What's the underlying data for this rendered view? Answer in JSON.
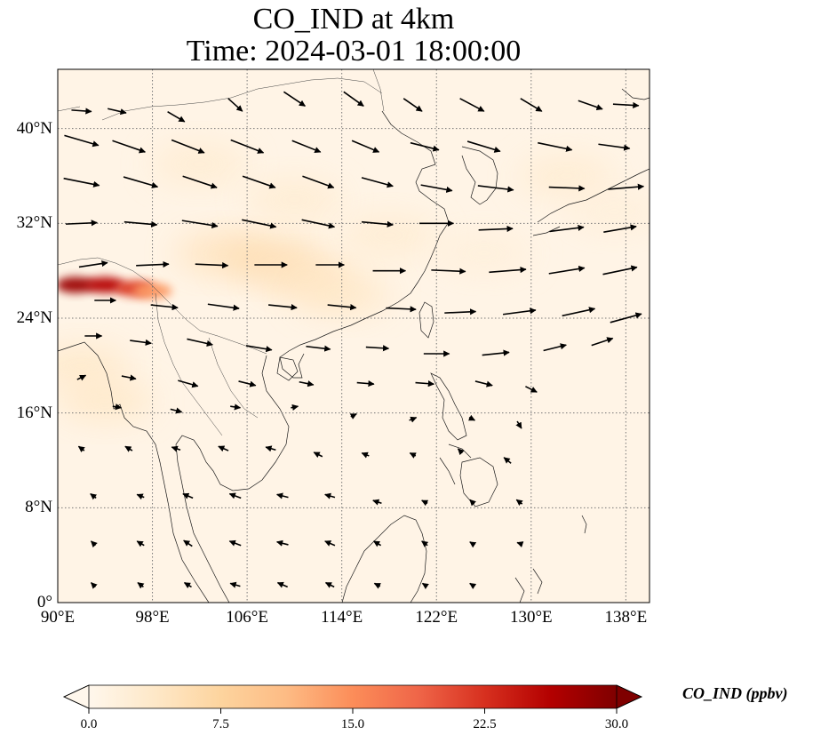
{
  "title_line1": "CO_IND at 4km",
  "title_line2": "Time: 2024-03-01 18:00:00",
  "chart_data": {
    "type": "heatmap",
    "projection": "PlateCarree",
    "lon_range": [
      90,
      140
    ],
    "lat_range": [
      0,
      45
    ],
    "x_ticks": [
      {
        "value": 90,
        "label": "90°E"
      },
      {
        "value": 98,
        "label": "98°E"
      },
      {
        "value": 106,
        "label": "106°E"
      },
      {
        "value": 114,
        "label": "114°E"
      },
      {
        "value": 122,
        "label": "122°E"
      },
      {
        "value": 130,
        "label": "130°E"
      },
      {
        "value": 138,
        "label": "138°E"
      }
    ],
    "y_ticks": [
      {
        "value": 0,
        "label": "0°"
      },
      {
        "value": 8,
        "label": "8°N"
      },
      {
        "value": 16,
        "label": "16°N"
      },
      {
        "value": 24,
        "label": "24°N"
      },
      {
        "value": 32,
        "label": "32°N"
      },
      {
        "value": 40,
        "label": "40°N"
      }
    ],
    "grid": true,
    "colormap": "OrRd",
    "color_range": [
      0,
      30
    ],
    "colorbar": {
      "orientation": "horizontal",
      "extend": "both",
      "ticks": [
        {
          "value": 0,
          "label": "0.0"
        },
        {
          "value": 7.5,
          "label": "7.5"
        },
        {
          "value": 15,
          "label": "15.0"
        },
        {
          "value": 22.5,
          "label": "22.5"
        },
        {
          "value": 30,
          "label": "30.0"
        }
      ],
      "label": "CO_IND (ppbv)"
    },
    "concentration_features": [
      {
        "lon": 91.5,
        "lat": 26.8,
        "value": 28
      },
      {
        "lon": 94.0,
        "lat": 26.8,
        "value": 26
      },
      {
        "lon": 96.5,
        "lat": 26.5,
        "value": 22
      },
      {
        "lon": 98.0,
        "lat": 26.3,
        "value": 14
      },
      {
        "lon": 92.0,
        "lat": 20.0,
        "value": 4
      },
      {
        "lon": 94.0,
        "lat": 17.0,
        "value": 4
      },
      {
        "lon": 104.0,
        "lat": 29.5,
        "value": 5
      },
      {
        "lon": 108.0,
        "lat": 29.0,
        "value": 6
      },
      {
        "lon": 111.0,
        "lat": 27.5,
        "value": 5
      },
      {
        "lon": 114.0,
        "lat": 26.0,
        "value": 4
      },
      {
        "lon": 102.0,
        "lat": 37.0,
        "value": 3
      },
      {
        "lon": 110.0,
        "lat": 34.0,
        "value": 3
      },
      {
        "lon": 118.0,
        "lat": 31.0,
        "value": 3
      },
      {
        "lon": 126.0,
        "lat": 29.5,
        "value": 2
      },
      {
        "lon": 133.0,
        "lat": 36.0,
        "value": 3
      },
      {
        "lon": 137.0,
        "lat": 33.0,
        "value": 2
      }
    ],
    "wind_vectors": [
      [
        92,
        41.5,
        1.4,
        -0.1
      ],
      [
        95,
        41.5,
        1.3,
        -0.3
      ],
      [
        100,
        41,
        1.2,
        -0.7
      ],
      [
        105,
        42,
        1.0,
        -0.9
      ],
      [
        110,
        42.5,
        1.5,
        -1.0
      ],
      [
        115,
        42.5,
        1.4,
        -1.0
      ],
      [
        120,
        42,
        1.3,
        -0.9
      ],
      [
        125,
        42,
        1.7,
        -0.9
      ],
      [
        130,
        42,
        1.5,
        -0.9
      ],
      [
        135,
        42,
        1.7,
        -0.6
      ],
      [
        138,
        42,
        1.8,
        -0.1
      ],
      [
        92,
        39,
        2.4,
        -0.7
      ],
      [
        96,
        38.5,
        2.3,
        -0.8
      ],
      [
        101,
        38.5,
        2.3,
        -0.9
      ],
      [
        106,
        38.5,
        2.3,
        -0.9
      ],
      [
        111,
        38.5,
        2.0,
        -0.8
      ],
      [
        116,
        38.5,
        1.9,
        -0.8
      ],
      [
        121,
        38.5,
        2.0,
        -0.5
      ],
      [
        126,
        38.5,
        2.3,
        -0.7
      ],
      [
        132,
        38.5,
        2.4,
        -0.5
      ],
      [
        137,
        38.5,
        2.2,
        -0.3
      ],
      [
        92,
        35.5,
        2.5,
        -0.5
      ],
      [
        97,
        35.5,
        2.4,
        -0.7
      ],
      [
        102,
        35.5,
        2.4,
        -0.8
      ],
      [
        107,
        35.5,
        2.3,
        -0.8
      ],
      [
        112,
        35.5,
        2.2,
        -0.8
      ],
      [
        117,
        35.5,
        2.2,
        -0.6
      ],
      [
        122,
        35,
        2.2,
        -0.4
      ],
      [
        127,
        35,
        2.5,
        -0.3
      ],
      [
        133,
        35,
        2.5,
        -0.1
      ],
      [
        138,
        35,
        2.5,
        0.2
      ],
      [
        92,
        32,
        2.2,
        0.1
      ],
      [
        97,
        32,
        2.3,
        -0.2
      ],
      [
        102,
        32,
        2.5,
        -0.4
      ],
      [
        107,
        32,
        2.4,
        -0.5
      ],
      [
        112,
        32,
        2.3,
        -0.5
      ],
      [
        117,
        32,
        2.2,
        -0.2
      ],
      [
        122,
        32,
        2.4,
        0.0
      ],
      [
        127,
        31.5,
        2.4,
        0.1
      ],
      [
        133,
        31.5,
        2.4,
        0.3
      ],
      [
        137.5,
        31.5,
        2.3,
        0.4
      ],
      [
        93,
        28.5,
        2.0,
        0.3
      ],
      [
        98,
        28.5,
        2.3,
        0.1
      ],
      [
        103,
        28.5,
        2.3,
        -0.1
      ],
      [
        108,
        28.5,
        2.3,
        0.0
      ],
      [
        113,
        28.5,
        2.0,
        0.0
      ],
      [
        118,
        28,
        2.3,
        0.0
      ],
      [
        123,
        28,
        2.4,
        -0.1
      ],
      [
        128,
        28,
        2.6,
        0.2
      ],
      [
        133,
        28,
        2.5,
        0.4
      ],
      [
        137.5,
        28,
        2.4,
        0.5
      ],
      [
        94,
        25.5,
        1.5,
        0.0
      ],
      [
        99,
        25,
        1.9,
        -0.2
      ],
      [
        104,
        25,
        2.2,
        -0.3
      ],
      [
        109,
        25,
        2.0,
        -0.2
      ],
      [
        114,
        25,
        2.0,
        -0.2
      ],
      [
        119,
        24.8,
        2.1,
        -0.1
      ],
      [
        124,
        24.5,
        2.2,
        0.1
      ],
      [
        129,
        24.5,
        2.3,
        0.3
      ],
      [
        134,
        24.5,
        2.3,
        0.5
      ],
      [
        138,
        24,
        2.2,
        0.6
      ],
      [
        93,
        22.5,
        1.2,
        0.0
      ],
      [
        97,
        22,
        1.5,
        -0.2
      ],
      [
        102,
        22,
        1.8,
        -0.4
      ],
      [
        107,
        21.5,
        1.8,
        -0.3
      ],
      [
        112,
        21.5,
        1.7,
        -0.2
      ],
      [
        117,
        21.5,
        1.6,
        -0.1
      ],
      [
        122,
        21,
        1.8,
        0.0
      ],
      [
        127,
        21,
        1.9,
        0.2
      ],
      [
        132,
        21.5,
        1.6,
        0.4
      ],
      [
        136,
        22,
        1.5,
        0.5
      ],
      [
        92,
        19,
        0.6,
        0.3
      ],
      [
        96,
        19,
        1.0,
        -0.2
      ],
      [
        101,
        18.5,
        1.4,
        -0.4
      ],
      [
        106,
        18.5,
        1.2,
        -0.3
      ],
      [
        111,
        18.5,
        1.0,
        -0.2
      ],
      [
        116,
        18.5,
        1.2,
        -0.1
      ],
      [
        121,
        18.5,
        1.3,
        -0.1
      ],
      [
        126,
        18.5,
        1.2,
        -0.3
      ],
      [
        130,
        18,
        0.8,
        -0.4
      ],
      [
        95,
        16.5,
        0.6,
        -0.1
      ],
      [
        100,
        16.2,
        0.8,
        -0.2
      ],
      [
        105,
        16.5,
        0.7,
        -0.1
      ],
      [
        110,
        16.5,
        0.5,
        0.1
      ],
      [
        115,
        15.8,
        0.4,
        0.2
      ],
      [
        120,
        15.5,
        0.5,
        0.2
      ],
      [
        125,
        15.5,
        0.4,
        -0.2
      ],
      [
        129,
        15,
        0.3,
        -0.5
      ],
      [
        92,
        13,
        -0.4,
        0.3
      ],
      [
        96,
        13,
        -0.5,
        0.3
      ],
      [
        100,
        13,
        -0.6,
        0.2
      ],
      [
        104,
        13,
        -0.7,
        0.3
      ],
      [
        108,
        13,
        -0.7,
        0.2
      ],
      [
        112,
        12.5,
        -0.6,
        0.3
      ],
      [
        116,
        12.5,
        -0.5,
        0.2
      ],
      [
        120,
        12.5,
        -0.4,
        0.2
      ],
      [
        124,
        12.8,
        -0.3,
        0.3
      ],
      [
        128,
        12,
        -0.5,
        0.4
      ],
      [
        93,
        9,
        -0.4,
        0.3
      ],
      [
        97,
        9,
        -0.5,
        0.2
      ],
      [
        101,
        9,
        -0.7,
        0.3
      ],
      [
        105,
        9,
        -0.8,
        0.3
      ],
      [
        109,
        9,
        -0.8,
        0.2
      ],
      [
        113,
        9,
        -0.7,
        0.2
      ],
      [
        117,
        8.5,
        -0.6,
        0.2
      ],
      [
        121,
        8.5,
        -0.4,
        0.2
      ],
      [
        125,
        8.5,
        -0.3,
        0.3
      ],
      [
        129,
        8.5,
        -0.4,
        0.3
      ],
      [
        93,
        5,
        -0.3,
        0.3
      ],
      [
        97,
        5,
        -0.5,
        0.3
      ],
      [
        101,
        5,
        -0.6,
        0.4
      ],
      [
        105,
        5,
        -0.8,
        0.3
      ],
      [
        109,
        5,
        -0.8,
        0.2
      ],
      [
        113,
        5,
        -0.7,
        0.3
      ],
      [
        117,
        5,
        -0.5,
        0.3
      ],
      [
        121,
        5,
        -0.4,
        0.3
      ],
      [
        125,
        5,
        -0.3,
        0.2
      ],
      [
        129,
        5,
        -0.3,
        0.1
      ],
      [
        93,
        1.5,
        -0.3,
        0.3
      ],
      [
        97,
        1.5,
        -0.4,
        0.3
      ],
      [
        101,
        1.5,
        -0.5,
        0.3
      ],
      [
        105,
        1.5,
        -0.7,
        0.2
      ],
      [
        109,
        1.5,
        -0.7,
        0.3
      ],
      [
        113,
        1.5,
        -0.6,
        0.3
      ],
      [
        117,
        1.5,
        -0.4,
        0.2
      ],
      [
        121,
        1.5,
        -0.3,
        0.2
      ],
      [
        125,
        1.5,
        -0.3,
        0.2
      ]
    ]
  }
}
